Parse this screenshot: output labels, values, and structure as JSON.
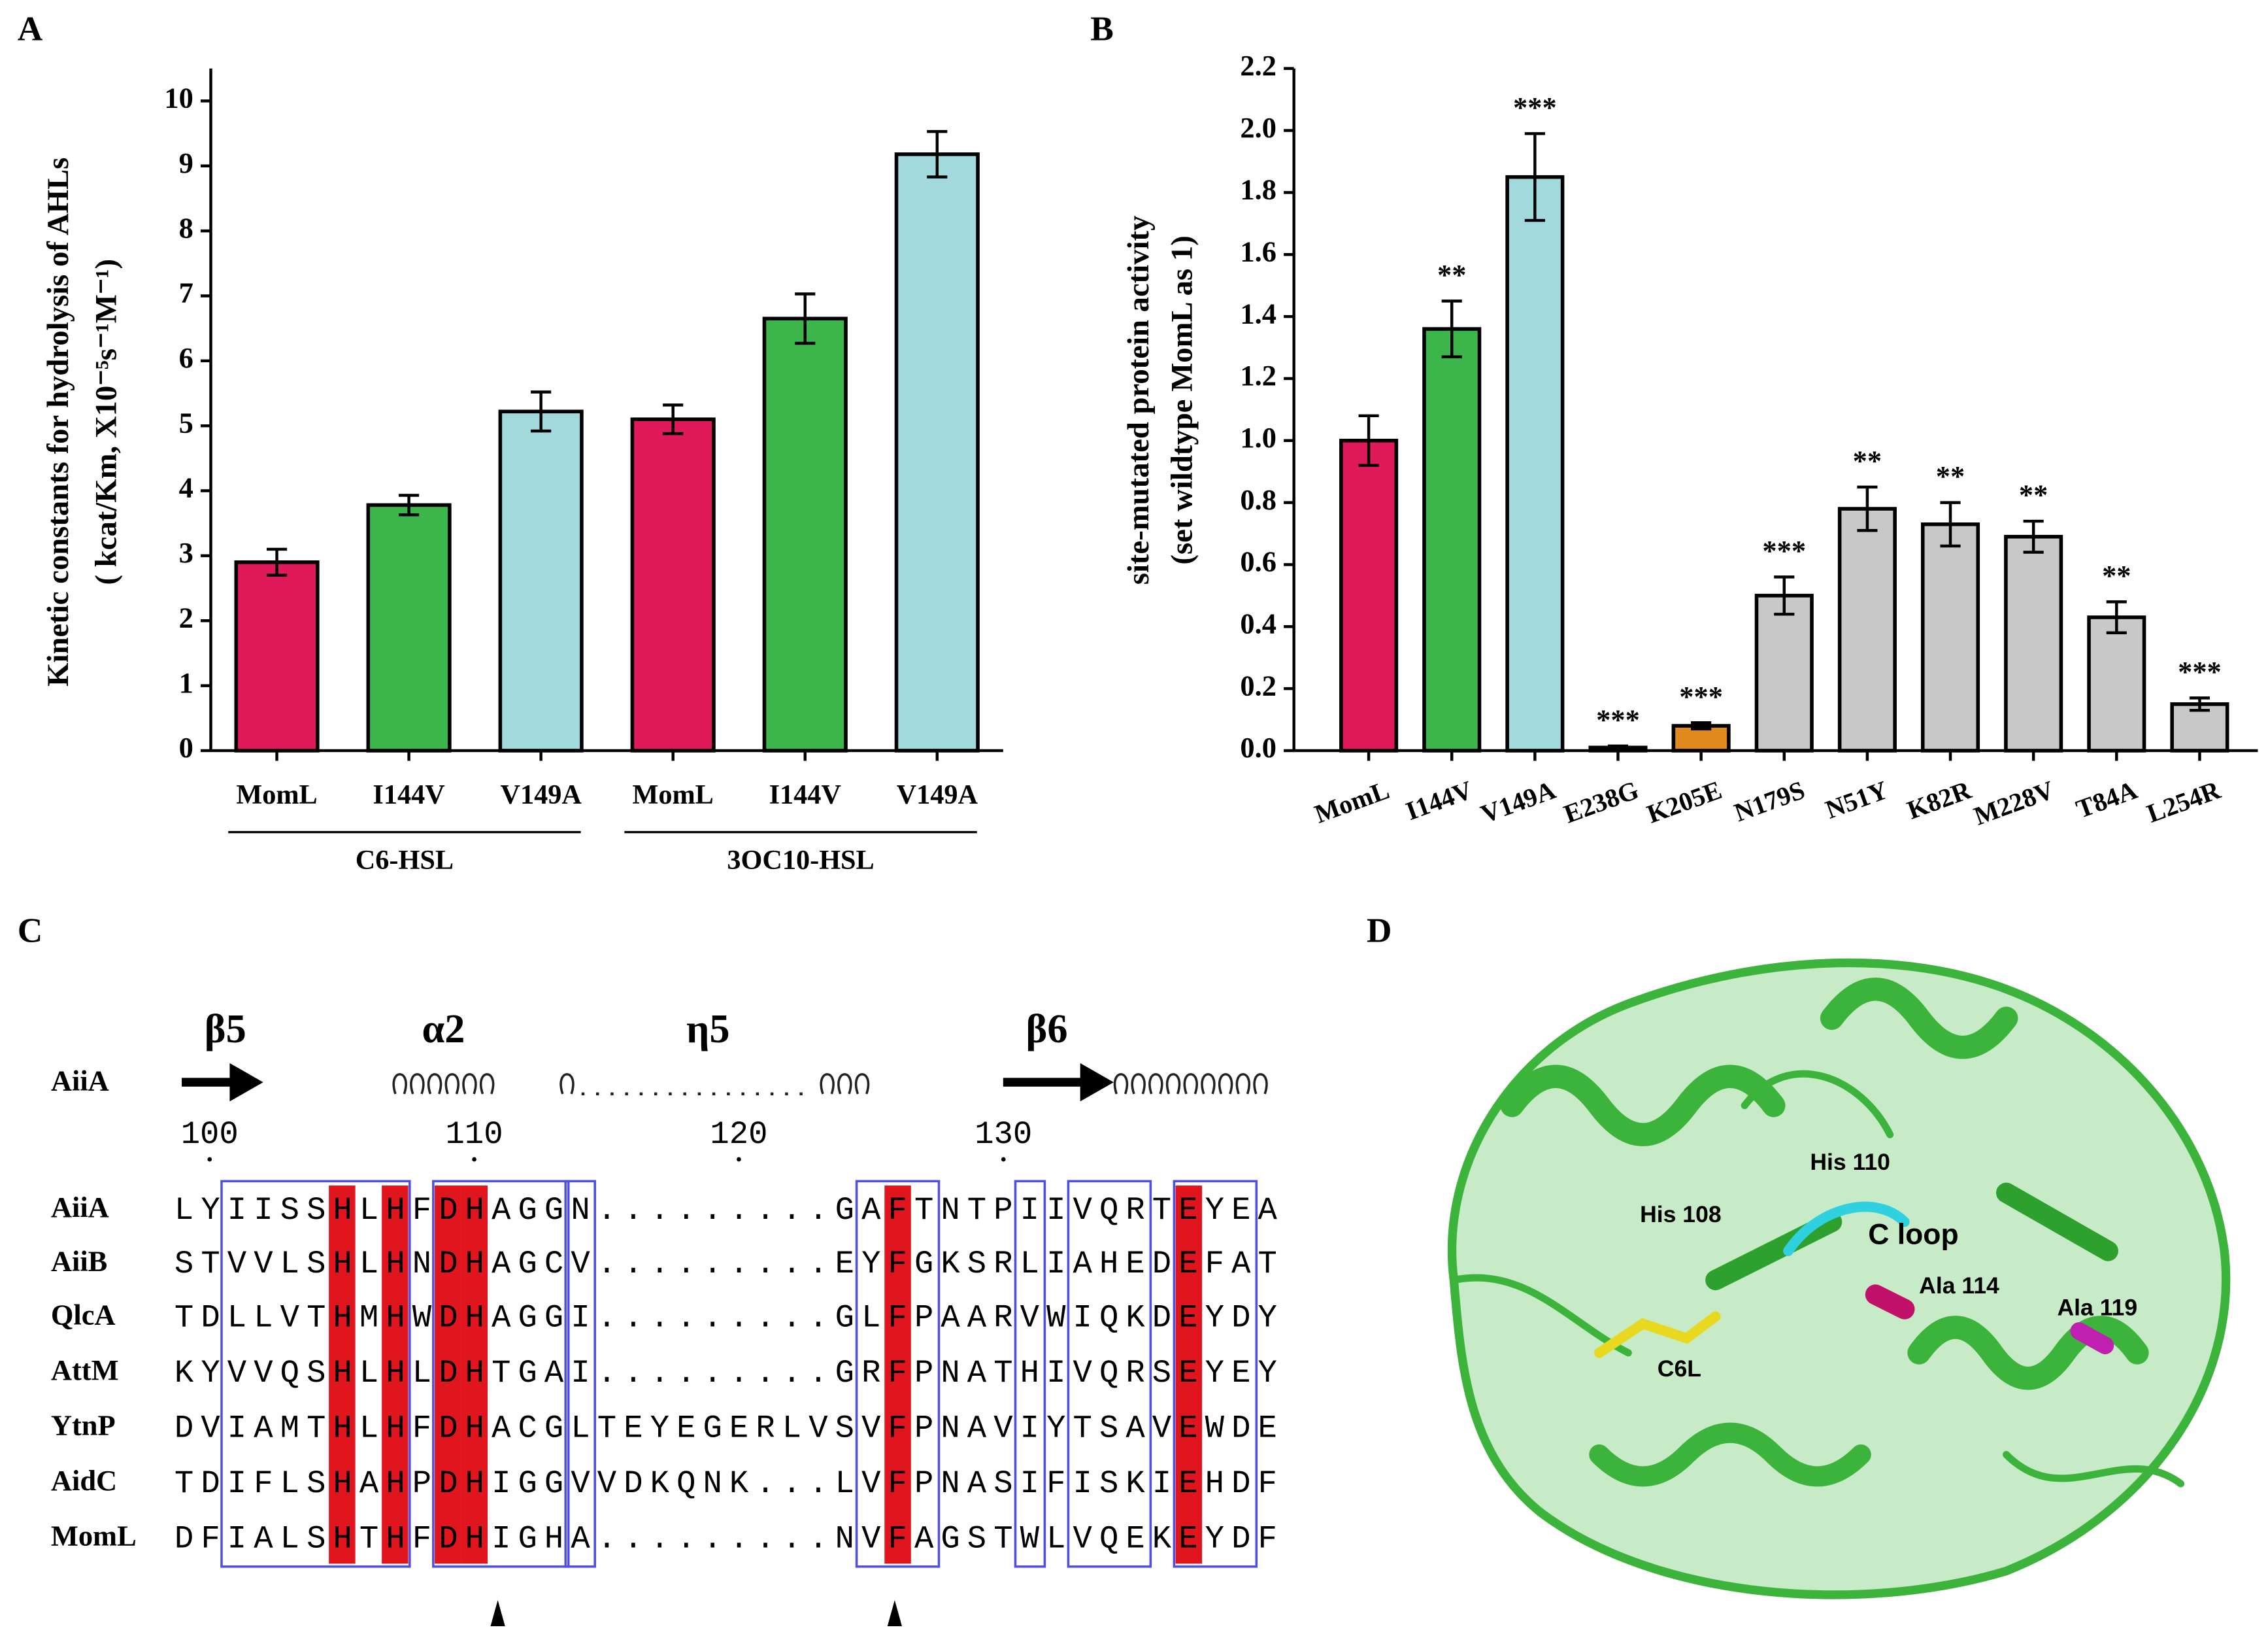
{
  "chart_data": [
    {
      "type": "bar",
      "panel": "A",
      "ylabel": [
        "Kinetic constants for hydrolysis of AHLs",
        "( kcat/Km, X10⁻⁵s⁻¹M⁻¹)"
      ],
      "categories": [
        "MomL",
        "I144V",
        "V149A",
        "MomL",
        "I144V",
        "V149A"
      ],
      "groups": [
        "C6-HSL",
        "3OC10-HSL"
      ],
      "values": [
        2.9,
        3.78,
        5.22,
        5.1,
        6.65,
        9.18
      ],
      "errors": [
        0.2,
        0.15,
        0.3,
        0.22,
        0.38,
        0.35
      ],
      "colors": [
        "#e0195a",
        "#3cb54a",
        "#a2d9dc",
        "#e0195a",
        "#3cb54a",
        "#a2d9dc"
      ],
      "ylim": [
        0,
        10.5
      ],
      "yticks": [
        0,
        1,
        2,
        3,
        4,
        5,
        6,
        7,
        8,
        9,
        10
      ]
    },
    {
      "type": "bar",
      "panel": "B",
      "ylabel": [
        "site-mutated protein activity",
        "(set wildtype MomL as 1)"
      ],
      "categories": [
        "MomL",
        "I144V",
        "V149A",
        "E238G",
        "K205E",
        "N179S",
        "N51Y",
        "K82R",
        "M228V",
        "T84A",
        "L254R"
      ],
      "values": [
        1.0,
        1.36,
        1.85,
        0.01,
        0.08,
        0.5,
        0.78,
        0.73,
        0.69,
        0.43,
        0.15
      ],
      "errors": [
        0.08,
        0.09,
        0.14,
        0.005,
        0.01,
        0.06,
        0.07,
        0.07,
        0.05,
        0.05,
        0.02
      ],
      "annotations": [
        null,
        "**",
        "***",
        "***",
        "***",
        "***",
        "**",
        "**",
        "**",
        "**",
        "***"
      ],
      "colors": [
        "#e0195a",
        "#3cb54a",
        "#a2d9dc",
        "#bdbdbd",
        "#e08a1e",
        "#c8c8c8",
        "#c8c8c8",
        "#c8c8c8",
        "#c8c8c8",
        "#c8c8c8",
        "#c8c8c8"
      ],
      "ylim": [
        0,
        2.2
      ],
      "yticks": [
        {
          "value": 0,
          "label": "0.0"
        },
        {
          "value": 0.2,
          "label": "0.2"
        },
        {
          "value": 0.4,
          "label": "0.4"
        },
        {
          "value": 0.6,
          "label": "0.6"
        },
        {
          "value": 0.8,
          "label": "0.8"
        },
        {
          "value": 1,
          "label": "1.0"
        },
        {
          "value": 1.2,
          "label": "1.2"
        },
        {
          "value": 1.4,
          "label": "1.4"
        },
        {
          "value": 1.6,
          "label": "1.6"
        },
        {
          "value": 1.8,
          "label": "1.8"
        },
        {
          "value": 2,
          "label": "2.0"
        },
        {
          "value": 2.2,
          "label": "2.2"
        }
      ]
    }
  ],
  "alignment": {
    "panel": "C",
    "structure_labels": [
      "β5",
      "α2",
      "η5",
      "β6"
    ],
    "reference": "AiiA",
    "positions": [
      100,
      110,
      120,
      130
    ],
    "rows": [
      {
        "name": "AiiA",
        "sequence": "LYIISSHLHFDHAGGN.........GAFTNTPIIVQRTEYEA"
      },
      {
        "name": "AiiB",
        "sequence": "STVVLSHLHNDHAGCV.........EYFGKSRLIAHEDEFAT"
      },
      {
        "name": "QlcA",
        "sequence": "TDLLVTHMHWDHAGGI.........GLFPAARVWIQKDEYDY"
      },
      {
        "name": "AttM",
        "sequence": "KYVVQSHLHLDHTGAI.........GRFPNATHIVQRSEYEY"
      },
      {
        "name": "YtnP",
        "sequence": "DVIAMTHLHFDHACGLTEYEGERLVSVFPNAVIYTSAVEWDE"
      },
      {
        "name": "AidC",
        "sequence": "TDIFLSHAHPDHIGGVVDKQNK...LVFPNASIFISKIEHDF"
      },
      {
        "name": "MomL",
        "sequence": "DFIALSHTHFDHIGHA.........NVFAGSTWLVQEKEYDF"
      }
    ]
  },
  "structure": {
    "panel": "D",
    "labels": [
      "His 110",
      "His 108",
      "C loop",
      "Ala 114",
      "Ala 119",
      "C6L"
    ]
  }
}
